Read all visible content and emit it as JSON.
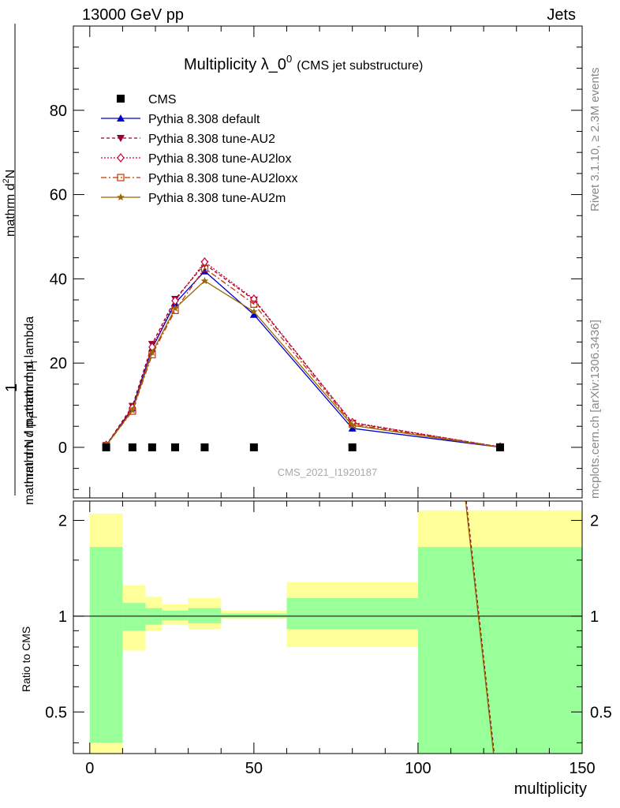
{
  "header": {
    "left": "13000 GeV pp",
    "right": "Jets"
  },
  "side": {
    "rivet": "Rivet 3.1.10, ≥ 2.3M events",
    "mcplots": "mcplots.cern.ch [arXiv:1306.3436]"
  },
  "watermark": "CMS_2021_I1920187",
  "title": {
    "main": "Multiplicity λ_0",
    "sup": "0",
    "sub": "(CMS jet substructure)"
  },
  "ylabel": {
    "numerator_top": "mathrm d",
    "numerator_sup": "2",
    "numerator_bottom": "N",
    "denominator": "mathrm d p",
    "denominator_sub": "T",
    "denominator_rest": "mathrm d lambda",
    "one": "1",
    "lower": "mathrm d N / mathrm d p",
    "lower_sub": "T"
  },
  "ratio_ylabel": "Ratio to CMS",
  "xlabel": "multiplicity",
  "colors": {
    "cms": "#000000",
    "default": "#0000cc",
    "au2": "#990033",
    "au2lox": "#cc0033",
    "au2loxx": "#cc3300",
    "au2m": "#996600",
    "band_inner": "#99ff99",
    "band_outer": "#ffff99"
  },
  "chart_data": [
    {
      "type": "line",
      "panel": "main",
      "xlim": [
        -5,
        150
      ],
      "ylim": [
        -12,
        100
      ],
      "yticks": [
        0,
        20,
        40,
        60,
        80
      ],
      "x": [
        5,
        13,
        19,
        26,
        35,
        50,
        80,
        125
      ],
      "series": [
        {
          "name": "CMS",
          "marker": "square",
          "values": [
            0,
            0,
            0,
            0,
            0,
            0,
            0,
            0
          ]
        },
        {
          "name": "Pythia 8.308 default",
          "marker": "triangle-up",
          "values": [
            0.4,
            9.3,
            23.5,
            34.2,
            41.8,
            31.5,
            4.5,
            0.05
          ]
        },
        {
          "name": "Pythia 8.308 tune-AU2",
          "marker": "triangle-down",
          "values": [
            0.5,
            9.8,
            24.5,
            35.2,
            43.5,
            35.0,
            5.8,
            0.1
          ]
        },
        {
          "name": "Pythia 8.308 tune-AU2lox",
          "marker": "diamond-open",
          "values": [
            0.5,
            9.4,
            23.8,
            34.8,
            44.0,
            35.2,
            5.9,
            0.1
          ]
        },
        {
          "name": "Pythia 8.308 tune-AU2loxx",
          "marker": "square-open",
          "values": [
            0.4,
            8.6,
            22.0,
            32.5,
            42.5,
            34.0,
            5.5,
            0.08
          ]
        },
        {
          "name": "Pythia 8.308 tune-AU2m",
          "marker": "star",
          "values": [
            0.4,
            8.8,
            22.5,
            33.0,
            39.5,
            32.2,
            5.2,
            0.07
          ]
        }
      ],
      "legend": "top-left",
      "grid": false
    },
    {
      "type": "area",
      "panel": "ratio",
      "xlim": [
        -5,
        150
      ],
      "ylim": [
        0.37,
        2.3
      ],
      "yscale": "log",
      "yticks": [
        0.5,
        1,
        2
      ],
      "bins": [
        {
          "x": [
            0,
            10
          ],
          "inner": [
            0.4,
            1.65
          ],
          "outer": [
            0.36,
            2.1
          ]
        },
        {
          "x": [
            10,
            17
          ],
          "inner": [
            0.9,
            1.1
          ],
          "outer": [
            0.78,
            1.25
          ]
        },
        {
          "x": [
            17,
            22
          ],
          "inner": [
            0.94,
            1.06
          ],
          "outer": [
            0.9,
            1.15
          ]
        },
        {
          "x": [
            22,
            30
          ],
          "inner": [
            0.97,
            1.04
          ],
          "outer": [
            0.94,
            1.09
          ]
        },
        {
          "x": [
            30,
            40
          ],
          "inner": [
            0.95,
            1.06
          ],
          "outer": [
            0.91,
            1.14
          ]
        },
        {
          "x": [
            40,
            60
          ],
          "inner": [
            0.99,
            1.02
          ],
          "outer": [
            0.98,
            1.04
          ]
        },
        {
          "x": [
            60,
            100
          ],
          "inner": [
            0.91,
            1.14
          ],
          "outer": [
            0.8,
            1.28
          ]
        },
        {
          "x": [
            100,
            150
          ],
          "inner": [
            0.36,
            1.65
          ],
          "outer": [
            0.36,
            2.15
          ]
        }
      ],
      "mc_line": {
        "x": [
          114.5,
          123.0
        ],
        "values": [
          2.3,
          0.37
        ]
      }
    }
  ]
}
